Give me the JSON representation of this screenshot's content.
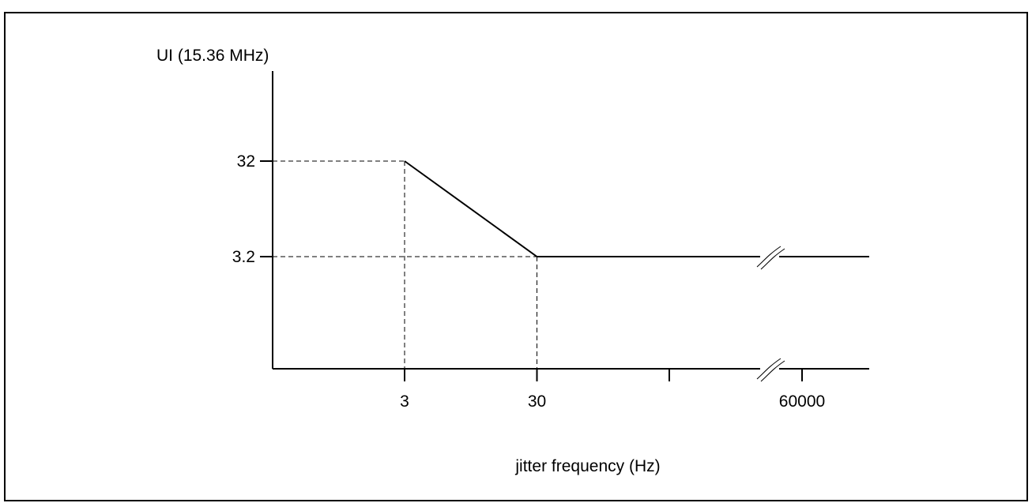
{
  "chart_data": {
    "type": "line",
    "ylabel": "UI (15.36 MHz)",
    "xlabel": "jitter frequency (Hz)",
    "x_scale": "log",
    "y_scale": "log",
    "x_ticks": [
      {
        "value": 3,
        "label": "3"
      },
      {
        "value": 30,
        "label": "30"
      },
      {
        "value": 300,
        "label": ""
      },
      {
        "value": 60000,
        "label": "60000"
      }
    ],
    "y_ticks": [
      {
        "value": 32,
        "label": "32"
      },
      {
        "value": 3.2,
        "label": "3.2"
      }
    ],
    "axis_break": true,
    "grid": false,
    "series": [
      {
        "x": [
          3,
          30,
          60000
        ],
        "y": [
          32,
          3.2,
          3.2
        ]
      }
    ]
  }
}
